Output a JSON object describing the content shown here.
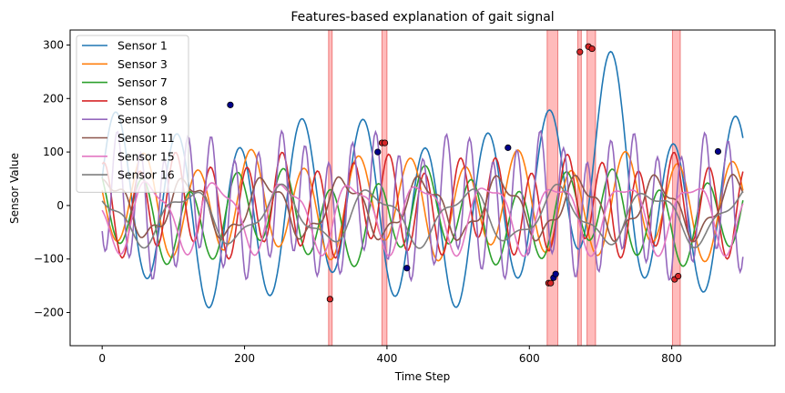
{
  "chart_data": {
    "type": "line",
    "title": "Features-based explanation of gait signal",
    "xlabel": "Time Step",
    "ylabel": "Sensor Value",
    "xlim": [
      -45,
      945
    ],
    "ylim": [
      -262,
      328
    ],
    "xticks": [
      0,
      200,
      400,
      600,
      800
    ],
    "yticks": [
      -200,
      -100,
      0,
      100,
      200,
      300
    ],
    "legend_position": "upper-left",
    "series": [
      {
        "name": "Sensor 1",
        "color": "#1f77b4",
        "waves": [
          [
            150,
            87,
            0.2
          ],
          [
            35,
            300,
            1.1
          ]
        ],
        "offset": -10,
        "bump": {
          "center": 715,
          "width": 45,
          "amp": 160
        }
      },
      {
        "name": "Sensor 3",
        "color": "#ff7f0e",
        "waves": [
          [
            85,
            75,
            2.9
          ],
          [
            20,
            180,
            0.4
          ]
        ],
        "offset": 0
      },
      {
        "name": "Sensor 7",
        "color": "#2ca02c",
        "waves": [
          [
            70,
            66,
            2.4
          ],
          [
            25,
            230,
            1.6
          ]
        ],
        "offset": -20
      },
      {
        "name": "Sensor 8",
        "color": "#d62728",
        "waves": [
          [
            80,
            50,
            1.2
          ],
          [
            20,
            140,
            3.0
          ]
        ],
        "offset": 0
      },
      {
        "name": "Sensor 9",
        "color": "#9467bd",
        "waves": [
          [
            110,
            33,
            3.8
          ],
          [
            30,
            120,
            0.7
          ]
        ],
        "offset": 0
      },
      {
        "name": "Sensor 11",
        "color": "#8c564b",
        "waves": [
          [
            50,
            110,
            1.0
          ],
          [
            15,
            37,
            2.2
          ]
        ],
        "offset": -5
      },
      {
        "name": "Sensor 15",
        "color": "#e377c2",
        "waves": [
          [
            60,
            95,
            3.3
          ],
          [
            20,
            47,
            0.9
          ]
        ],
        "offset": -15
      },
      {
        "name": "Sensor 16",
        "color": "#7f7f7f",
        "waves": [
          [
            45,
            130,
            2.0
          ],
          [
            15,
            55,
            4.1
          ]
        ],
        "offset": -20
      }
    ],
    "highlight_bands": [
      [
        318,
        323
      ],
      [
        393,
        400
      ],
      [
        625,
        640
      ],
      [
        668,
        673
      ],
      [
        681,
        693
      ],
      [
        801,
        812
      ]
    ],
    "highlight_points": [
      {
        "x": 180,
        "y": 188,
        "color": "#00008b"
      },
      {
        "x": 320,
        "y": -175,
        "color": "#d62728"
      },
      {
        "x": 387,
        "y": 100,
        "color": "#00008b"
      },
      {
        "x": 393,
        "y": 117,
        "color": "#d62728"
      },
      {
        "x": 397,
        "y": 117,
        "color": "#d62728"
      },
      {
        "x": 428,
        "y": -117,
        "color": "#00008b"
      },
      {
        "x": 570,
        "y": 108,
        "color": "#00008b"
      },
      {
        "x": 627,
        "y": -145,
        "color": "#d62728"
      },
      {
        "x": 630,
        "y": -145,
        "color": "#d62728"
      },
      {
        "x": 634,
        "y": -135,
        "color": "#00008b"
      },
      {
        "x": 637,
        "y": -128,
        "color": "#00008b"
      },
      {
        "x": 671,
        "y": 287,
        "color": "#d62728"
      },
      {
        "x": 683,
        "y": 297,
        "color": "#d62728"
      },
      {
        "x": 688,
        "y": 293,
        "color": "#d62728"
      },
      {
        "x": 804,
        "y": -138,
        "color": "#d62728"
      },
      {
        "x": 809,
        "y": -132,
        "color": "#d62728"
      },
      {
        "x": 865,
        "y": 101,
        "color": "#00008b"
      }
    ]
  }
}
